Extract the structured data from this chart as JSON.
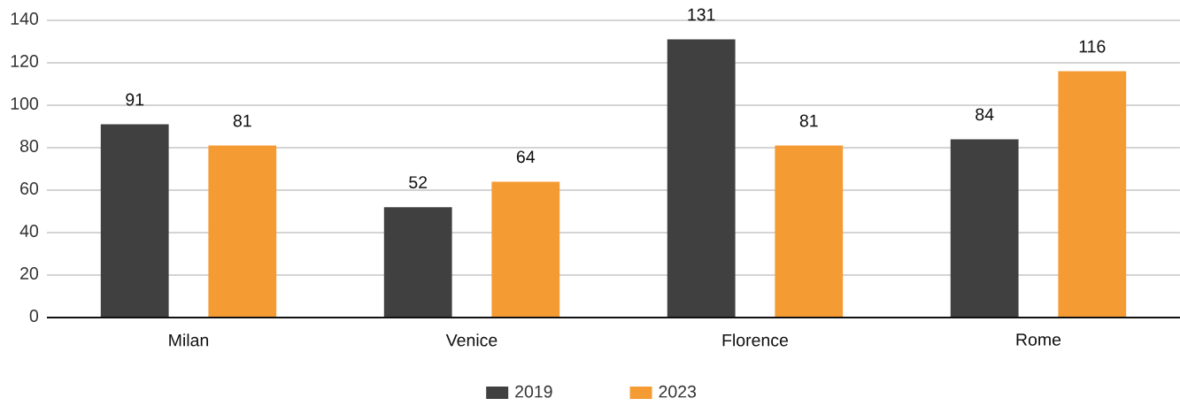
{
  "chart_data": {
    "type": "bar",
    "categories": [
      "Milan",
      "Venice",
      "Florence",
      "Rome"
    ],
    "series": [
      {
        "name": "2019",
        "color": "#404040",
        "values": [
          91,
          52,
          131,
          84
        ]
      },
      {
        "name": "2023",
        "color": "#f59b33",
        "values": [
          81,
          64,
          81,
          116
        ]
      }
    ],
    "ylim": [
      0,
      140
    ],
    "yticks": [
      0,
      20,
      40,
      60,
      80,
      100,
      120,
      140
    ],
    "grid": "y",
    "legend": "bottom",
    "data_labels": true
  }
}
